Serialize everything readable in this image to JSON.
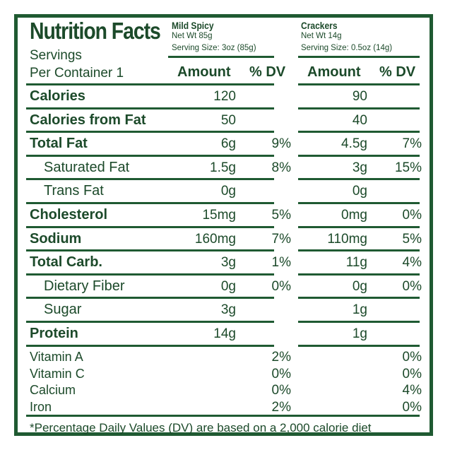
{
  "title": "Nutrition Facts",
  "products": [
    {
      "name": "Mild Spicy",
      "net_wt": "Net Wt 85g",
      "serving_size": "Serving Size: 3oz (85g)"
    },
    {
      "name": "Crackers",
      "net_wt": "Net Wt 14g",
      "serving_size": "Serving Size: 0.5oz (14g)"
    }
  ],
  "servings_line1": "Servings",
  "servings_line2": "Per Container 1",
  "headers": {
    "amount": "Amount",
    "dv": "% DV"
  },
  "rows": [
    {
      "label": "Calories",
      "bold": true,
      "indent": false,
      "a1": "120",
      "d1": "",
      "a2": "90",
      "d2": ""
    },
    {
      "label": "Calories from Fat",
      "bold": true,
      "indent": false,
      "a1": "50",
      "d1": "",
      "a2": "40",
      "d2": ""
    },
    {
      "label": "Total Fat",
      "bold": true,
      "indent": false,
      "a1": "6g",
      "d1": "9%",
      "a2": "4.5g",
      "d2": "7%"
    },
    {
      "label": "Saturated Fat",
      "bold": false,
      "indent": true,
      "a1": "1.5g",
      "d1": "8%",
      "a2": "3g",
      "d2": "15%"
    },
    {
      "label": "Trans Fat",
      "bold": false,
      "indent": true,
      "a1": "0g",
      "d1": "",
      "a2": "0g",
      "d2": ""
    },
    {
      "label": "Cholesterol",
      "bold": true,
      "indent": false,
      "a1": "15mg",
      "d1": "5%",
      "a2": "0mg",
      "d2": "0%"
    },
    {
      "label": "Sodium",
      "bold": true,
      "indent": false,
      "a1": "160mg",
      "d1": "7%",
      "a2": "110mg",
      "d2": "5%"
    },
    {
      "label": "Total Carb.",
      "bold": true,
      "indent": false,
      "a1": "3g",
      "d1": "1%",
      "a2": "11g",
      "d2": "4%"
    },
    {
      "label": "Dietary Fiber",
      "bold": false,
      "indent": true,
      "a1": "0g",
      "d1": "0%",
      "a2": "0g",
      "d2": "0%"
    },
    {
      "label": "Sugar",
      "bold": false,
      "indent": true,
      "a1": "3g",
      "d1": "",
      "a2": "1g",
      "d2": ""
    },
    {
      "label": "Protein",
      "bold": true,
      "indent": false,
      "a1": "14g",
      "d1": "",
      "a2": "1g",
      "d2": ""
    }
  ],
  "vitamins": [
    {
      "label": "Vitamin A",
      "d1": "2%",
      "d2": "0%"
    },
    {
      "label": "Vitamin C",
      "d1": "0%",
      "d2": "0%"
    },
    {
      "label": "Calcium",
      "d1": "0%",
      "d2": "4%"
    },
    {
      "label": "Iron",
      "d1": "2%",
      "d2": "0%"
    }
  ],
  "footnote": "*Percentage Daily Values (DV) are based on a 2,000 calorie diet",
  "colors": {
    "text": "#1c4a2a",
    "border": "#1f5a32"
  }
}
